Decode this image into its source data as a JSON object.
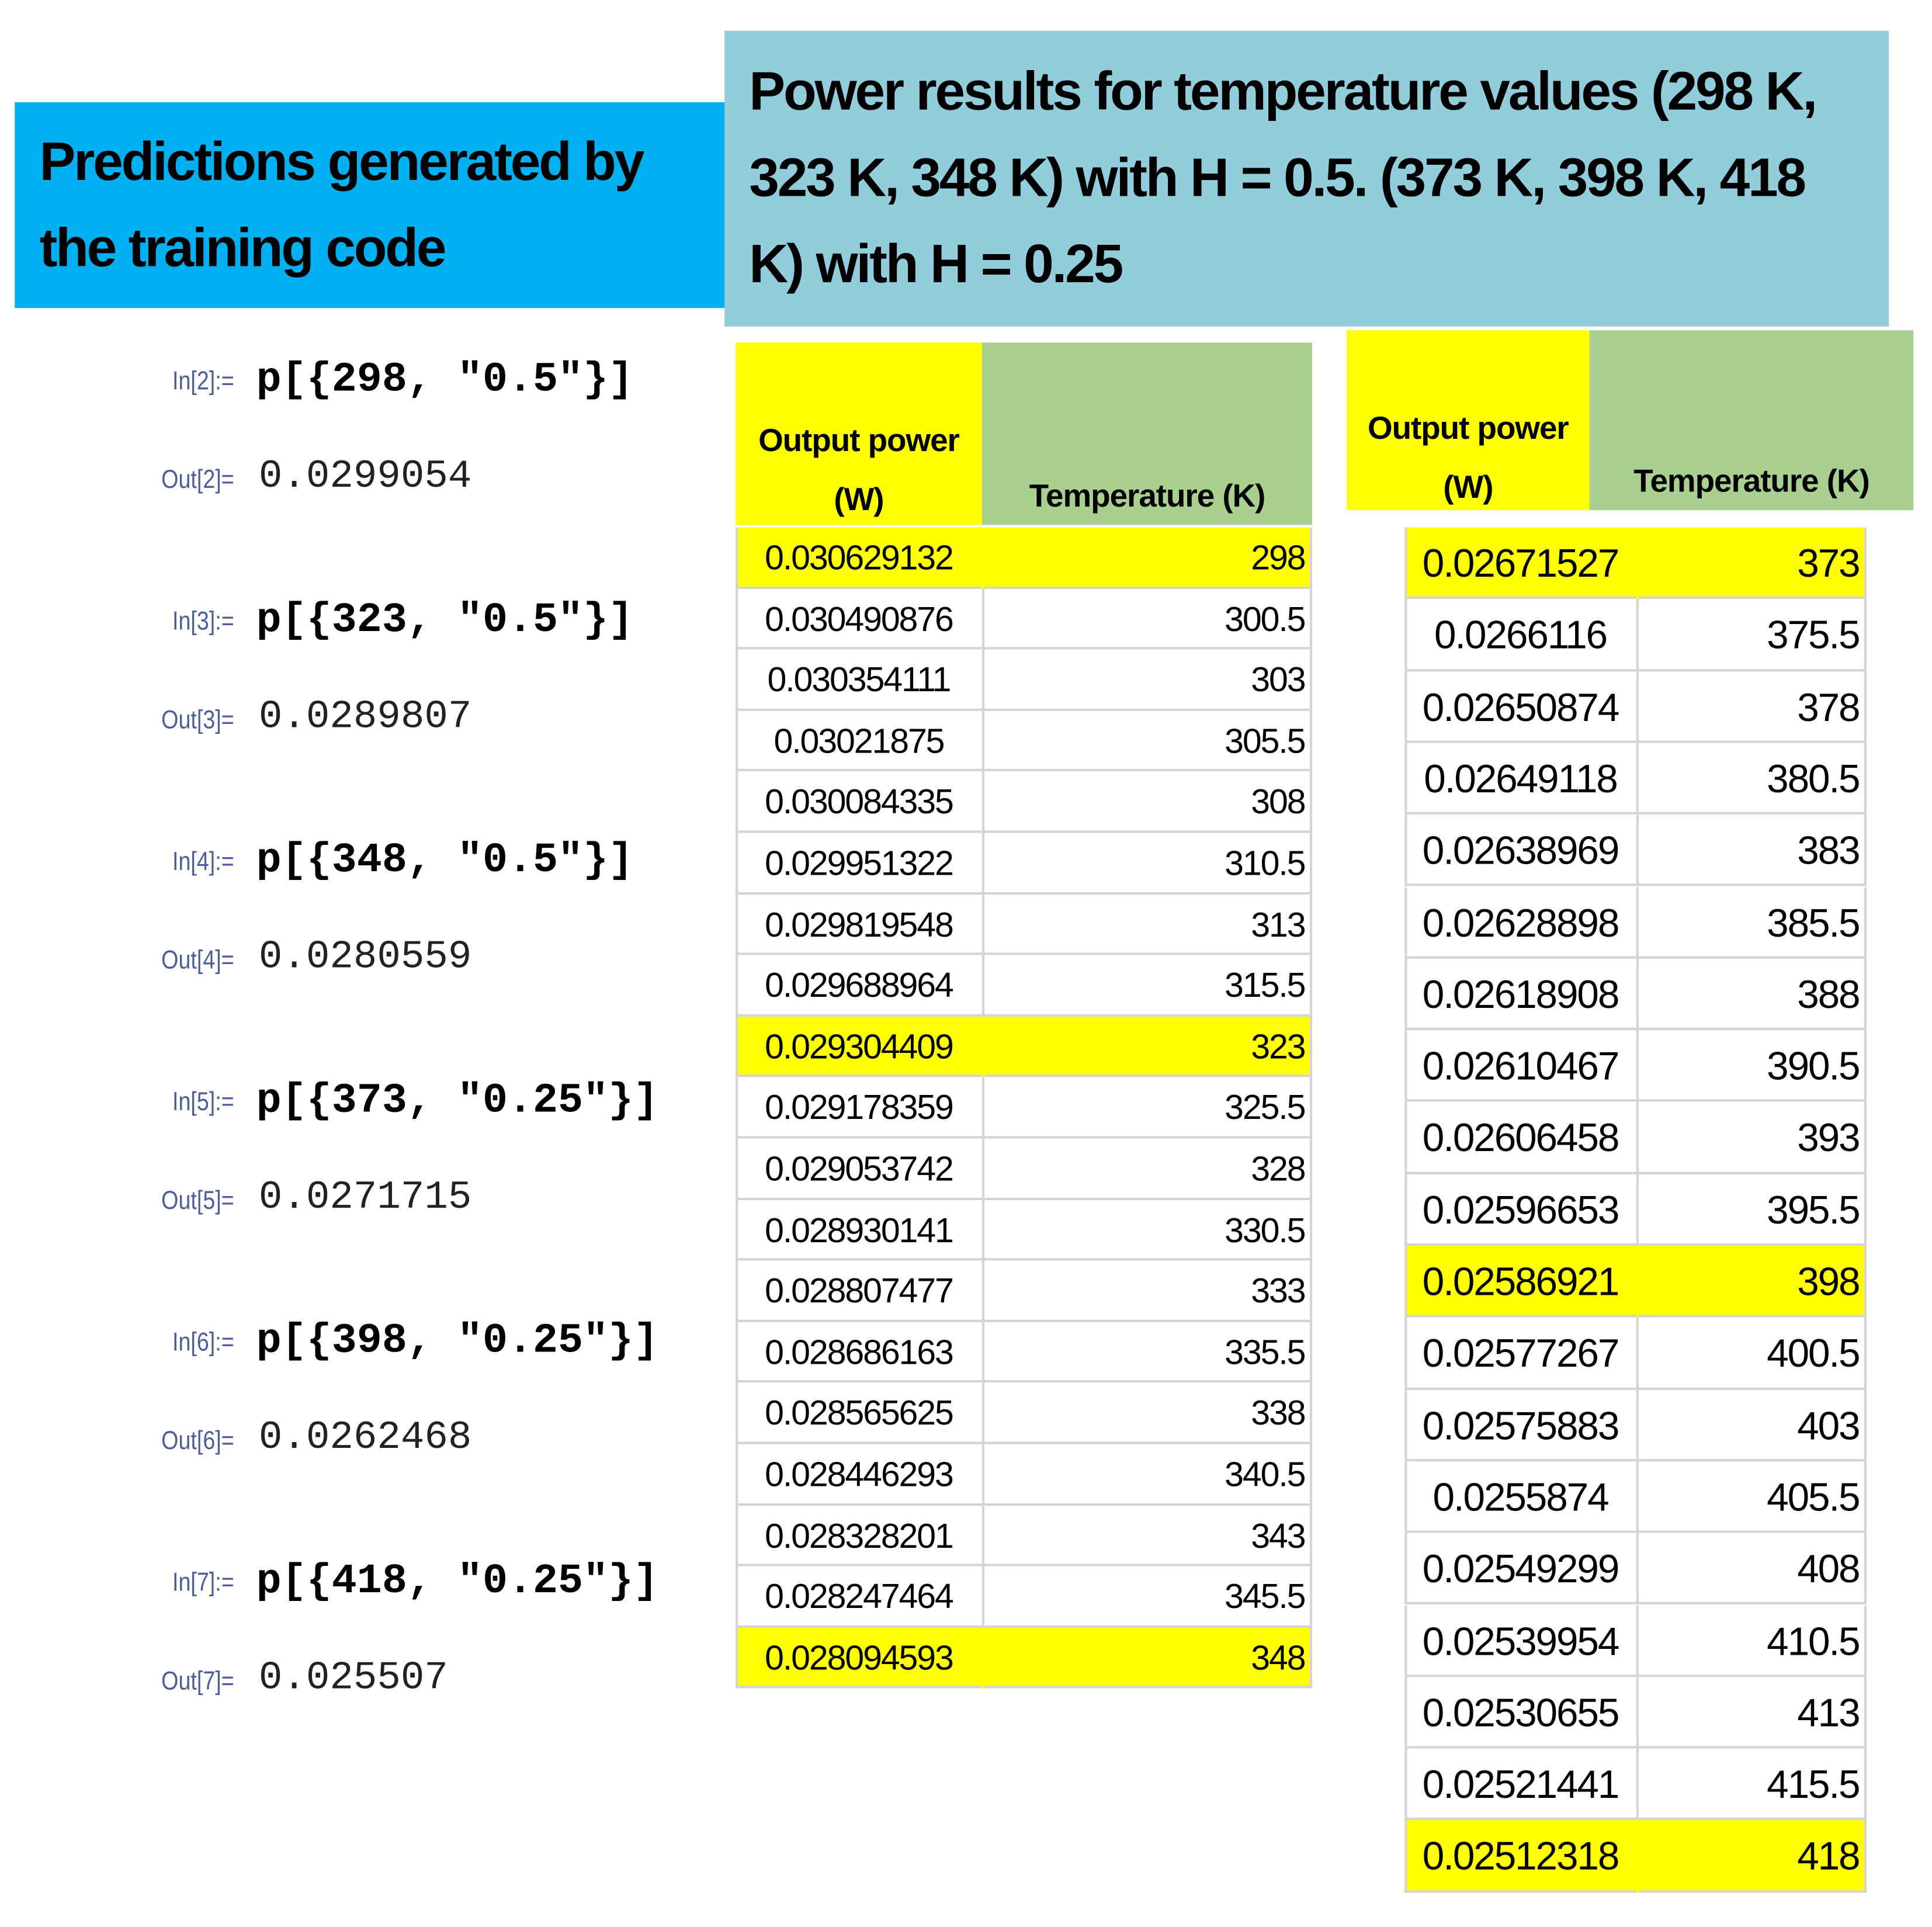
{
  "left_header": {
    "title": "Predictions generated by the training code"
  },
  "right_header": {
    "title": "Power results for temperature values (298 K, 323 K, 348 K) with H = 0.5. (373 K, 398 K, 418 K) with H = 0.25"
  },
  "cells": [
    {
      "in_label": "In[2]:=",
      "code": "p[{298, \"0.5\"}]",
      "out_label": "Out[2]=",
      "output": 0.0299054
    },
    {
      "in_label": "In[3]:=",
      "code": "p[{323, \"0.5\"}]",
      "out_label": "Out[3]=",
      "output": 0.0289807
    },
    {
      "in_label": "In[4]:=",
      "code": "p[{348, \"0.5\"}]",
      "out_label": "Out[4]=",
      "output": 0.0280559
    },
    {
      "in_label": "In[5]:=",
      "code": "p[{373, \"0.25\"}]",
      "out_label": "Out[5]=",
      "output": 0.0271715
    },
    {
      "in_label": "In[6]:=",
      "code": "p[{398, \"0.25\"}]",
      "out_label": "Out[6]=",
      "output": 0.0262468
    },
    {
      "in_label": "In[7]:=",
      "code": "p[{418, \"0.25\"}]",
      "out_label": "Out[7]=",
      "output": 0.025507
    }
  ],
  "tables": [
    {
      "headers": [
        "Output power (W)",
        "Temperature (K)"
      ],
      "rows": [
        [
          0.030629132,
          298
        ],
        [
          0.030490876,
          300.5
        ],
        [
          0.030354111,
          303
        ],
        [
          0.03021875,
          305.5
        ],
        [
          0.030084335,
          308
        ],
        [
          0.029951322,
          310.5
        ],
        [
          0.029819548,
          313
        ],
        [
          0.029688964,
          315.5
        ],
        [
          0.029304409,
          323
        ],
        [
          0.029178359,
          325.5
        ],
        [
          0.029053742,
          328
        ],
        [
          0.028930141,
          330.5
        ],
        [
          0.028807477,
          333
        ],
        [
          0.028686163,
          335.5
        ],
        [
          0.028565625,
          338
        ],
        [
          0.028446293,
          340.5
        ],
        [
          0.028328201,
          343
        ],
        [
          0.028247464,
          345.5
        ],
        [
          0.028094593,
          348
        ]
      ]
    },
    {
      "headers": [
        "Output power (W)",
        "Temperature (K)"
      ],
      "rows": [
        [
          0.02671527,
          373
        ],
        [
          0.0266116,
          375.5
        ],
        [
          0.02650874,
          378
        ],
        [
          0.02649118,
          380.5
        ],
        [
          0.02638969,
          383
        ],
        [
          0.02628898,
          385.5
        ],
        [
          0.02618908,
          388
        ],
        [
          0.02610467,
          390.5
        ],
        [
          0.02606458,
          393
        ],
        [
          0.02596653,
          395.5
        ],
        [
          0.02586921,
          398
        ],
        [
          0.02577267,
          400.5
        ],
        [
          0.02575883,
          403
        ],
        [
          0.0255874,
          405.5
        ],
        [
          0.02549299,
          408
        ],
        [
          0.02539954,
          410.5
        ],
        [
          0.02530655,
          413
        ],
        [
          0.02521441,
          415.5
        ],
        [
          0.02512318,
          418
        ]
      ]
    }
  ]
}
